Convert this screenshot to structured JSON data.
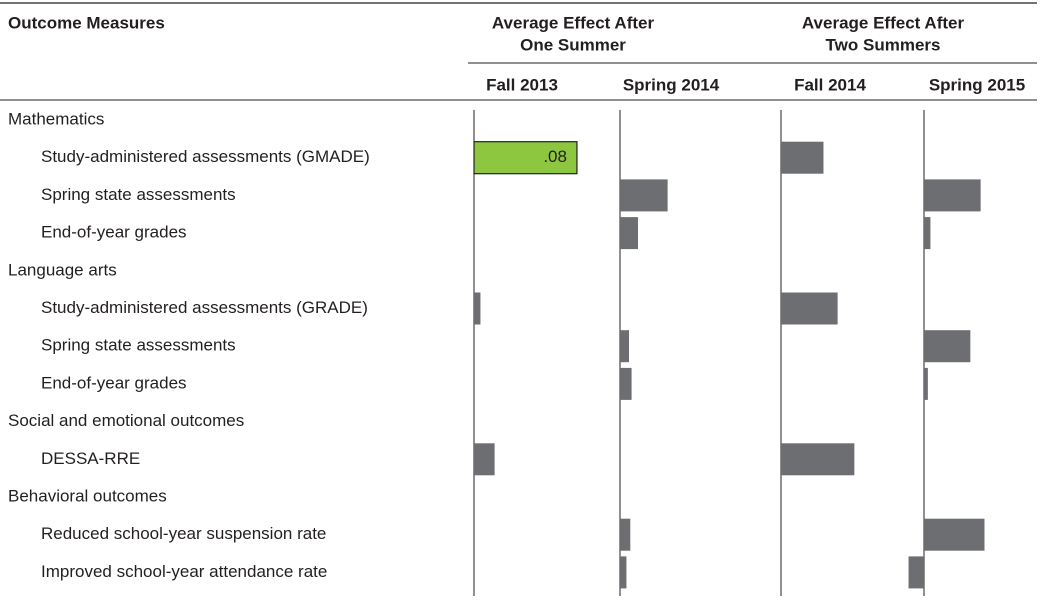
{
  "chart_data": {
    "type": "bar-table",
    "stub_header": "Outcome Measures",
    "groups": [
      [
        "Average Effect After",
        "One Summer"
      ],
      [
        "Average Effect After",
        "Two Summers"
      ]
    ],
    "columns": [
      "Fall 2013",
      "Spring 2014",
      "Fall 2014",
      "Spring 2015"
    ],
    "color": "#6d6e71",
    "highlight_color": "#8dc63f",
    "sections": [
      {
        "name": "Mathematics",
        "rows": [
          {
            "label": "Study-administered assessments (GMADE)",
            "values": [
              0.08,
              null,
              0.033,
              null
            ],
            "value_labels": [
              ".08",
              null,
              null,
              null
            ]
          },
          {
            "label": "Spring state assessments",
            "values": [
              null,
              0.037,
              null,
              0.044
            ]
          },
          {
            "label": "End-of-year grades",
            "values": [
              null,
              0.014,
              null,
              0.005
            ]
          }
        ]
      },
      {
        "name": "Language arts",
        "rows": [
          {
            "label": "Study-administered assessments (GRADE)",
            "values": [
              0.005,
              null,
              0.044,
              null
            ]
          },
          {
            "label": "Spring state assessments",
            "values": [
              null,
              0.007,
              null,
              0.036
            ]
          },
          {
            "label": "End-of-year grades",
            "values": [
              null,
              0.009,
              null,
              0.003
            ]
          }
        ]
      },
      {
        "name": "Social and emotional outcomes",
        "rows": [
          {
            "label": "DESSA-RRE",
            "values": [
              0.016,
              null,
              0.057,
              null
            ]
          }
        ]
      },
      {
        "name": "Behavioral outcomes",
        "rows": [
          {
            "label": "Reduced school-year suspension rate",
            "values": [
              null,
              0.008,
              null,
              0.047
            ]
          },
          {
            "label": "Improved school-year attendance rate",
            "values": [
              null,
              0.005,
              null,
              -0.012
            ]
          }
        ]
      }
    ]
  }
}
